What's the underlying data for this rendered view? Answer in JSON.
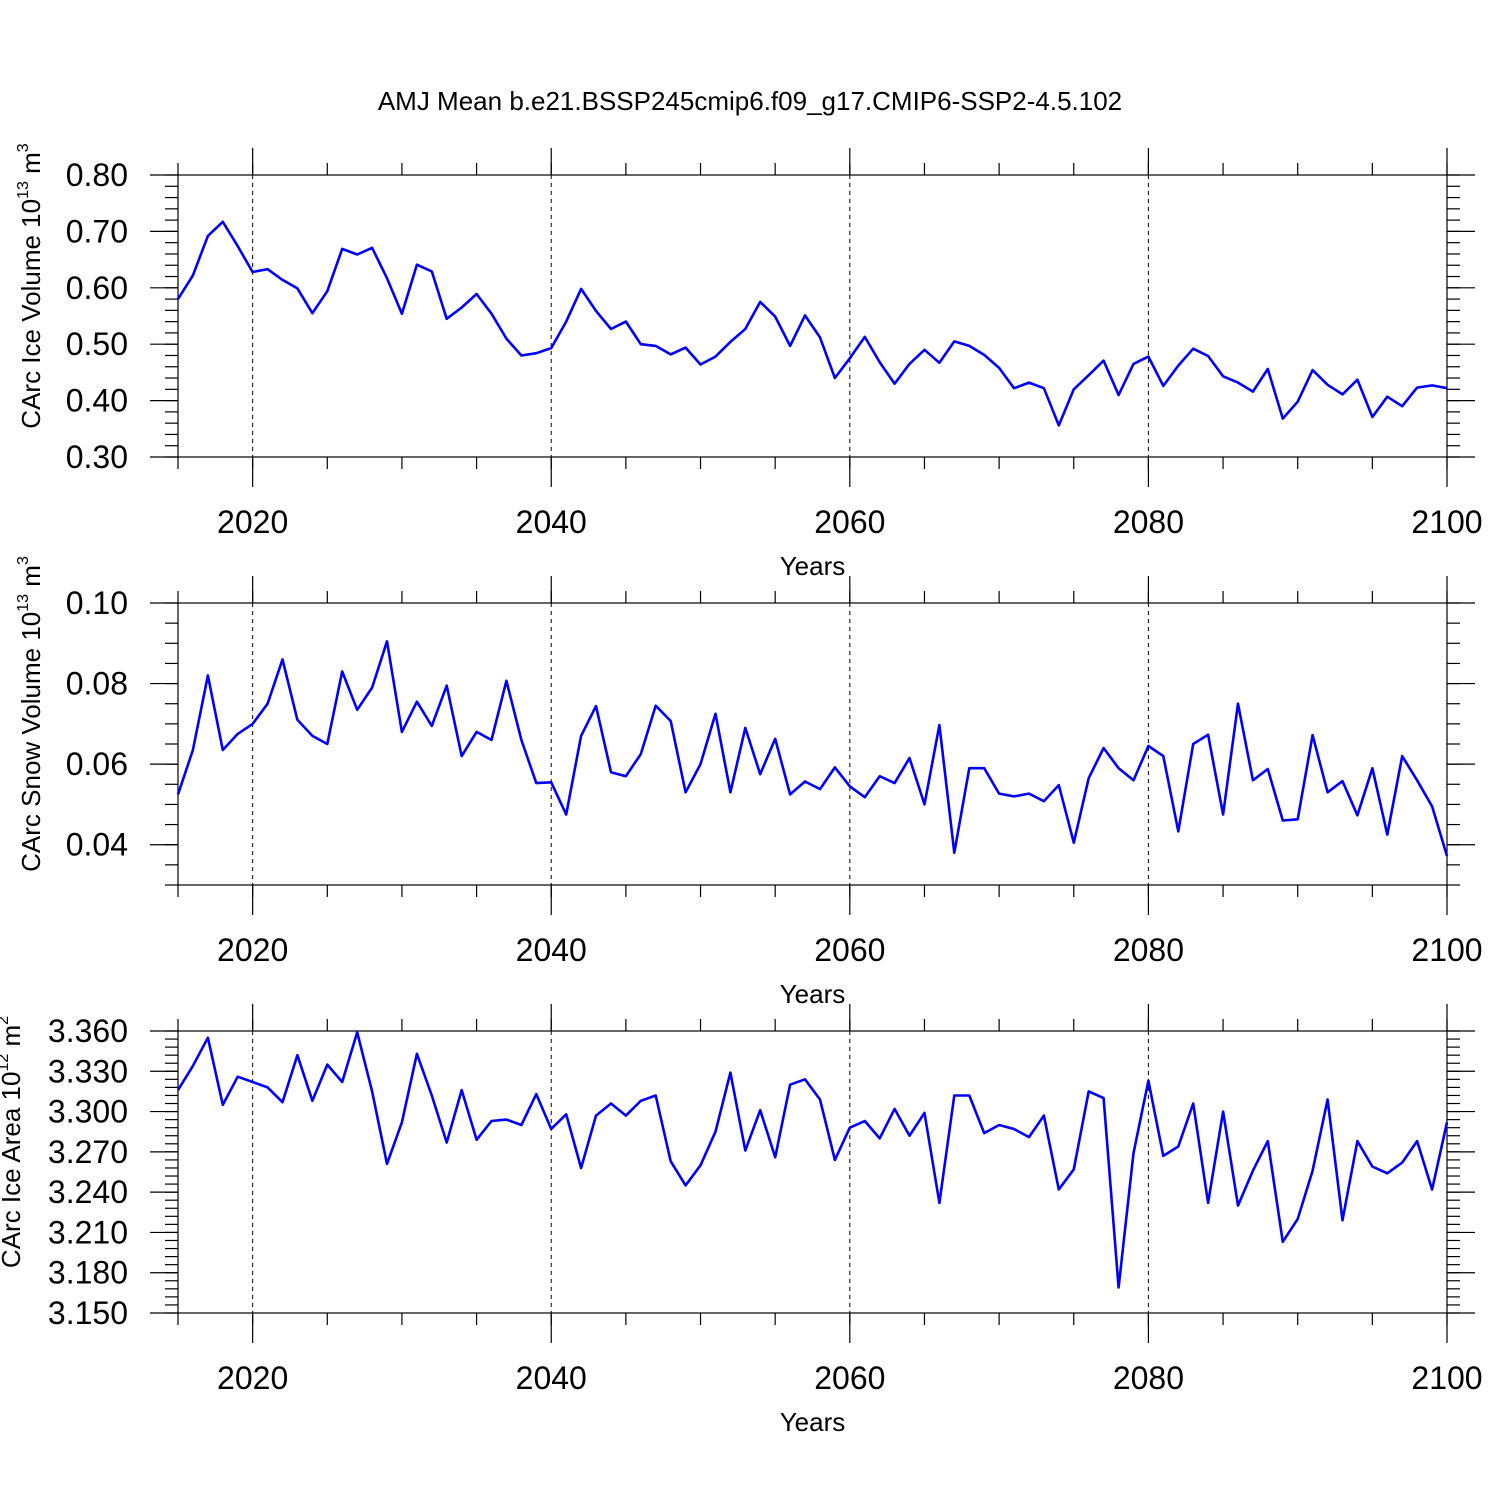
{
  "figure_title": "AMJ Mean b.e21.BSSP245cmip6.f09_g17.CMIP6-SSP2-4.5.102",
  "chart_data": [
    {
      "type": "line",
      "ylabel_main": "CArc Ice Volume 10",
      "ylabel_exp": "13",
      "ylabel_unit": " m",
      "ylabel_unit_exp": "3",
      "xlabel": "Years",
      "xlim": [
        2015,
        2100
      ],
      "ylim": [
        0.3,
        0.8
      ],
      "y_major_ticks": [
        0.3,
        0.4,
        0.5,
        0.6,
        0.7,
        0.8
      ],
      "y_tick_labels": [
        "0.30",
        "0.40",
        "0.50",
        "0.60",
        "0.70",
        "0.80"
      ],
      "y_minor_step": 0.02,
      "x_major_ticks": [
        2020,
        2040,
        2060,
        2080,
        2100
      ],
      "x_tick_labels": [
        "2020",
        "2040",
        "2060",
        "2080",
        "2100"
      ],
      "x_grid": [
        2020,
        2040,
        2060,
        2080
      ],
      "line_color": "#0000ff",
      "x_start": 2015,
      "values": [
        0.58,
        0.622,
        0.692,
        0.717,
        0.674,
        0.628,
        0.633,
        0.614,
        0.599,
        0.555,
        0.594,
        0.669,
        0.659,
        0.671,
        0.617,
        0.554,
        0.641,
        0.629,
        0.545,
        0.565,
        0.589,
        0.554,
        0.51,
        0.48,
        0.484,
        0.493,
        0.54,
        0.598,
        0.559,
        0.527,
        0.54,
        0.5,
        0.497,
        0.482,
        0.494,
        0.464,
        0.478,
        0.504,
        0.527,
        0.575,
        0.549,
        0.497,
        0.551,
        0.512,
        0.44,
        0.475,
        0.513,
        0.468,
        0.43,
        0.465,
        0.49,
        0.467,
        0.505,
        0.497,
        0.481,
        0.458,
        0.422,
        0.432,
        0.422,
        0.356,
        0.42,
        0.445,
        0.471,
        0.41,
        0.465,
        0.478,
        0.426,
        0.462,
        0.492,
        0.479,
        0.443,
        0.432,
        0.416,
        0.456,
        0.368,
        0.398,
        0.454,
        0.428,
        0.411,
        0.437,
        0.371,
        0.407,
        0.39,
        0.423,
        0.427,
        0.422
      ]
    },
    {
      "type": "line",
      "ylabel_main": "CArc Snow Volume 10",
      "ylabel_exp": "13",
      "ylabel_unit": " m",
      "ylabel_unit_exp": "3",
      "xlabel": "Years",
      "xlim": [
        2015,
        2100
      ],
      "ylim": [
        0.03,
        0.1
      ],
      "y_major_ticks": [
        0.04,
        0.06,
        0.08,
        0.1
      ],
      "y_tick_labels": [
        "0.04",
        "0.06",
        "0.08",
        "0.10"
      ],
      "y_minor_step": 0.005,
      "x_major_ticks": [
        2020,
        2040,
        2060,
        2080,
        2100
      ],
      "x_tick_labels": [
        "2020",
        "2040",
        "2060",
        "2080",
        "2100"
      ],
      "x_grid": [
        2020,
        2040,
        2060,
        2080
      ],
      "line_color": "#0000ff",
      "x_start": 2015,
      "values": [
        0.0525,
        0.0635,
        0.082,
        0.0635,
        0.0675,
        0.07,
        0.075,
        0.086,
        0.071,
        0.067,
        0.065,
        0.083,
        0.0735,
        0.079,
        0.0905,
        0.068,
        0.0755,
        0.0695,
        0.0795,
        0.062,
        0.068,
        0.066,
        0.0807,
        0.066,
        0.0553,
        0.0555,
        0.0475,
        0.067,
        0.0744,
        0.058,
        0.057,
        0.0625,
        0.0745,
        0.0707,
        0.053,
        0.06,
        0.0725,
        0.053,
        0.069,
        0.0575,
        0.0663,
        0.0525,
        0.0557,
        0.0538,
        0.0592,
        0.0545,
        0.0518,
        0.057,
        0.0553,
        0.0615,
        0.05,
        0.0697,
        0.038,
        0.059,
        0.059,
        0.0527,
        0.052,
        0.0527,
        0.0508,
        0.0548,
        0.0405,
        0.0565,
        0.064,
        0.059,
        0.056,
        0.0645,
        0.062,
        0.0433,
        0.065,
        0.0673,
        0.0475,
        0.075,
        0.056,
        0.0588,
        0.046,
        0.0463,
        0.0672,
        0.053,
        0.0558,
        0.0473,
        0.059,
        0.0425,
        0.062,
        0.056,
        0.0495,
        0.0372
      ]
    },
    {
      "type": "line",
      "ylabel_main": "CArc Ice Area 10",
      "ylabel_exp": "12",
      "ylabel_unit": " m",
      "ylabel_unit_exp": "2",
      "xlabel": "Years",
      "xlim": [
        2015,
        2100
      ],
      "ylim": [
        3.15,
        3.36
      ],
      "y_major_ticks": [
        3.15,
        3.18,
        3.21,
        3.24,
        3.27,
        3.3,
        3.33,
        3.36
      ],
      "y_tick_labels": [
        "3.150",
        "3.180",
        "3.210",
        "3.240",
        "3.270",
        "3.300",
        "3.330",
        "3.360"
      ],
      "y_minor_step": 0.006,
      "x_major_ticks": [
        2020,
        2040,
        2060,
        2080,
        2100
      ],
      "x_tick_labels": [
        "2020",
        "2040",
        "2060",
        "2080",
        "2100"
      ],
      "x_grid": [
        2020,
        2040,
        2060,
        2080
      ],
      "line_color": "#0000ff",
      "x_start": 2015,
      "values": [
        3.316,
        3.334,
        3.355,
        3.305,
        3.326,
        3.322,
        3.318,
        3.307,
        3.342,
        3.308,
        3.335,
        3.322,
        3.359,
        3.315,
        3.261,
        3.292,
        3.343,
        3.312,
        3.277,
        3.316,
        3.279,
        3.293,
        3.294,
        3.29,
        3.313,
        3.287,
        3.298,
        3.258,
        3.297,
        3.306,
        3.297,
        3.308,
        3.312,
        3.263,
        3.245,
        3.26,
        3.285,
        3.329,
        3.271,
        3.301,
        3.266,
        3.32,
        3.324,
        3.309,
        3.264,
        3.288,
        3.293,
        3.28,
        3.302,
        3.282,
        3.299,
        3.232,
        3.312,
        3.312,
        3.284,
        3.29,
        3.287,
        3.281,
        3.297,
        3.242,
        3.257,
        3.315,
        3.31,
        3.169,
        3.269,
        3.323,
        3.267,
        3.274,
        3.306,
        3.232,
        3.3,
        3.23,
        3.256,
        3.278,
        3.203,
        3.22,
        3.256,
        3.309,
        3.219,
        3.278,
        3.259,
        3.254,
        3.262,
        3.278,
        3.242,
        3.292
      ]
    }
  ]
}
